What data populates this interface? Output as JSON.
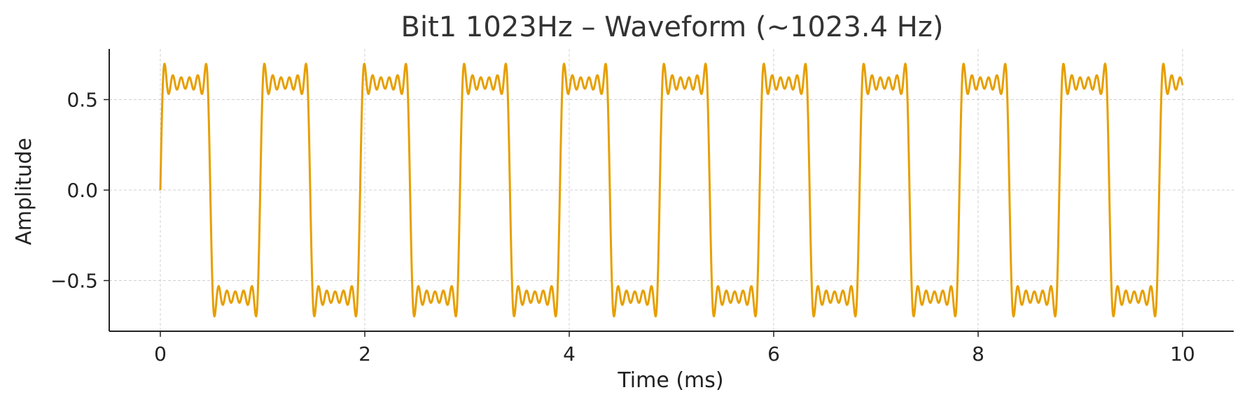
{
  "chart_data": {
    "type": "line",
    "title": "Bit1 1023Hz – Waveform (~1023.4 Hz)",
    "xlabel": "Time (ms)",
    "ylabel": "Amplitude",
    "xlim": [
      -0.5,
      10.5
    ],
    "ylim": [
      -0.78,
      0.78
    ],
    "xticks": [
      0,
      2,
      4,
      6,
      8,
      10
    ],
    "xtick_labels": [
      "0",
      "2",
      "4",
      "6",
      "8",
      "10"
    ],
    "yticks": [
      0.5,
      0.0,
      -0.5
    ],
    "ytick_labels": [
      "0.5",
      "0.0",
      "−0.5"
    ],
    "grid": true,
    "series": [
      {
        "frequency_hz": 1023.4,
        "amplitude": 0.6,
        "x_start_ms": 0,
        "x_end_ms": 10,
        "start_value": 0.0,
        "color": "#e69f00"
      }
    ]
  }
}
